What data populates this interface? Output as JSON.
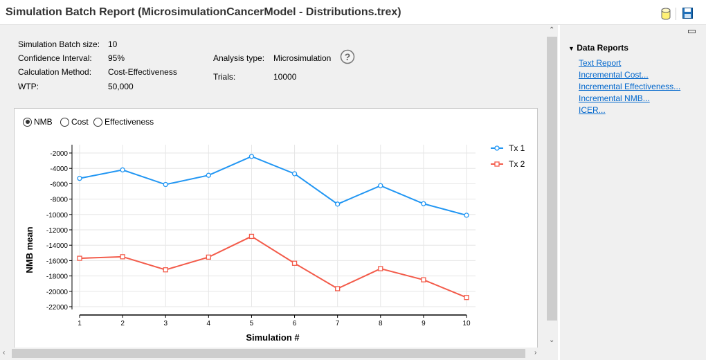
{
  "window": {
    "title": "Simulation Batch Report (MicrosimulationCancerModel - Distributions.trex)",
    "icons": [
      "database-icon",
      "save-icon"
    ]
  },
  "info": {
    "batch_size_label": "Simulation Batch size:",
    "batch_size": "10",
    "ci_label": "Confidence Interval:",
    "ci": "95%",
    "method_label": "Calculation Method:",
    "method": "Cost-Effectiveness",
    "wtp_label": "WTP:",
    "wtp": "50,000",
    "analysis_label": "Analysis type:",
    "analysis": "Microsimulation",
    "trials_label": "Trials:",
    "trials": "10000",
    "help_icon": "question-circle-icon"
  },
  "chart_options": {
    "selected": "NMB",
    "options": [
      "NMB",
      "Cost",
      "Effectiveness"
    ]
  },
  "chart_data": {
    "type": "line",
    "xlabel": "Simulation #",
    "ylabel": "NMB mean",
    "x": [
      1,
      2,
      3,
      4,
      5,
      6,
      7,
      8,
      9,
      10
    ],
    "xticks": [
      "1",
      "2",
      "3",
      "4",
      "5",
      "6",
      "7",
      "8",
      "9",
      "10"
    ],
    "yticks": [
      "-2000",
      "-4000",
      "-6000",
      "-8000",
      "-10000",
      "-12000",
      "-14000",
      "-16000",
      "-18000",
      "-20000",
      "-22000"
    ],
    "ylim": [
      -22000,
      -2000
    ],
    "grid": true,
    "legend_position": "right",
    "series": [
      {
        "name": "Tx 1",
        "color": "#2196f3",
        "marker": "circle",
        "values": [
          -5300,
          -4200,
          -6100,
          -4900,
          -2450,
          -4700,
          -8650,
          -6250,
          -8600,
          -10100
        ]
      },
      {
        "name": "Tx 2",
        "color": "#f35b4a",
        "marker": "square",
        "values": [
          -15700,
          -15500,
          -17200,
          -15550,
          -12850,
          -16350,
          -19650,
          -17050,
          -18500,
          -20800
        ]
      }
    ]
  },
  "side_panel": {
    "heading": "Data Reports",
    "links": [
      "Text Report",
      "Incremental Cost...",
      "Incremental Effectiveness...",
      "Incremental NMB...",
      "ICER..."
    ]
  }
}
